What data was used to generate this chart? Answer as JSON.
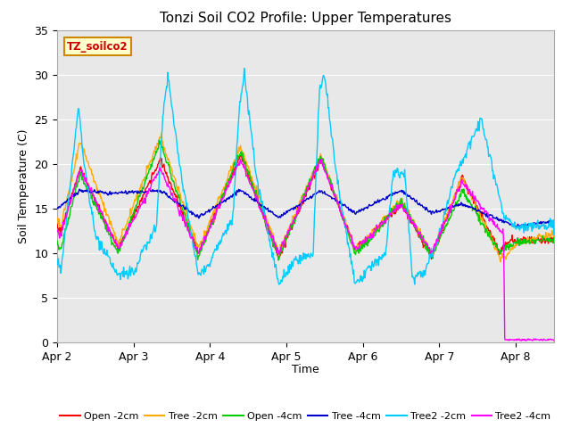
{
  "title": "Tonzi Soil CO2 Profile: Upper Temperatures",
  "ylabel": "Soil Temperature (C)",
  "xlabel": "Time",
  "watermark": "TZ_soilco2",
  "ylim": [
    0,
    35
  ],
  "xlim": [
    0,
    6.5
  ],
  "xtick_positions": [
    0,
    1,
    2,
    3,
    4,
    5,
    6
  ],
  "xtick_labels": [
    "Apr 2",
    "Apr 3",
    "Apr 4",
    "Apr 5",
    "Apr 6",
    "Apr 7",
    "Apr 8"
  ],
  "ytick_positions": [
    0,
    5,
    10,
    15,
    20,
    25,
    30,
    35
  ],
  "plot_bg_color": "#e8e8e8",
  "grid_color": "#ffffff",
  "colors": {
    "open2": "#ff0000",
    "tree2": "#ffaa00",
    "open4": "#00cc00",
    "tree4": "#0000cc",
    "tree2_2cm": "#00ccff",
    "tree2_4cm": "#ff00ff"
  },
  "legend_labels": [
    "Open -2cm",
    "Tree -2cm",
    "Open -4cm",
    "Tree -4cm",
    "Tree2 -2cm",
    "Tree2 -4cm"
  ],
  "figsize": [
    6.4,
    4.8
  ],
  "dpi": 100
}
